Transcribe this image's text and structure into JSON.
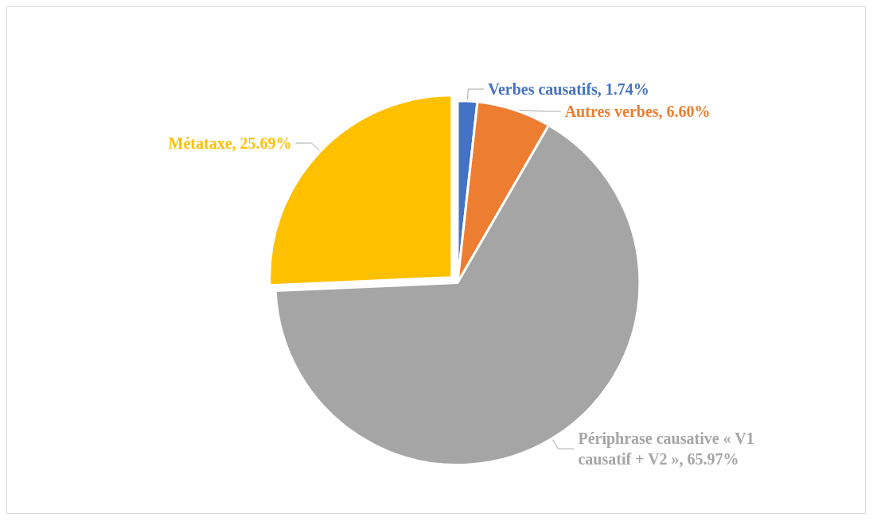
{
  "chart_data": {
    "type": "pie",
    "categories": [
      "Verbes causatifs",
      "Autres verbes",
      "Périphrase causative « V1 causatif + V2 »",
      "Métataxe"
    ],
    "values": [
      1.74,
      6.6,
      65.97,
      25.69
    ],
    "colors": [
      "#4472c4",
      "#ed7d31",
      "#a5a5a5",
      "#ffc000"
    ],
    "value_labels": [
      "1.74%",
      "6.60%",
      "65.97%",
      "25.69%"
    ],
    "legend": false
  }
}
